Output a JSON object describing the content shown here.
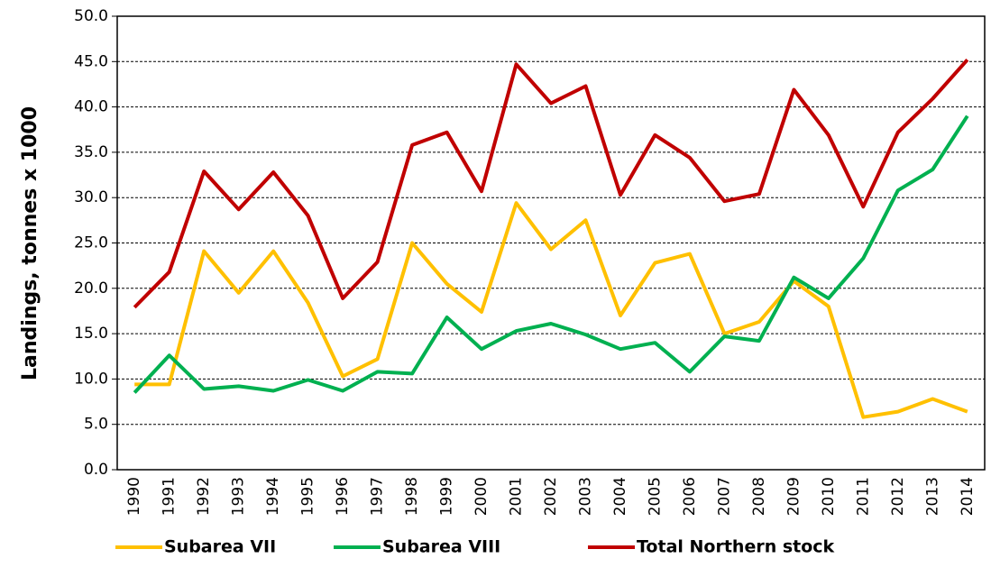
{
  "chart_data": {
    "type": "line",
    "y_label": "Landings, tonnes x 1000",
    "categories": [
      "1990",
      "1991",
      "1992",
      "1993",
      "1994",
      "1995",
      "1996",
      "1997",
      "1998",
      "1999",
      "2000",
      "2001",
      "2002",
      "2003",
      "2004",
      "2005",
      "2006",
      "2007",
      "2008",
      "2009",
      "2010",
      "2011",
      "2012",
      "2013",
      "2014"
    ],
    "series": [
      {
        "name": "Subarea VII",
        "color": "#ffc000",
        "values": [
          9.4,
          9.4,
          24.1,
          19.5,
          24.1,
          18.4,
          10.3,
          12.2,
          25.0,
          20.5,
          17.4,
          29.4,
          24.3,
          27.5,
          17.0,
          22.8,
          23.8,
          15.0,
          16.3,
          20.8,
          18.0,
          5.8,
          6.4,
          7.8,
          6.4
        ]
      },
      {
        "name": "Subarea VIII",
        "color": "#00b050",
        "values": [
          8.5,
          12.6,
          8.9,
          9.2,
          8.7,
          9.9,
          8.7,
          10.8,
          10.6,
          16.8,
          13.3,
          15.3,
          16.1,
          14.9,
          13.3,
          14.0,
          10.8,
          14.7,
          14.2,
          21.2,
          18.9,
          23.3,
          30.8,
          33.1,
          39.0
        ]
      },
      {
        "name": "Total Northern stock",
        "color": "#c00000",
        "values": [
          17.9,
          21.8,
          32.9,
          28.7,
          32.8,
          28.0,
          18.9,
          22.9,
          35.8,
          37.2,
          30.7,
          44.7,
          40.4,
          42.3,
          30.3,
          36.9,
          34.4,
          29.6,
          30.4,
          41.9,
          36.9,
          29.0,
          37.2,
          40.9,
          45.2
        ]
      }
    ],
    "ylim": [
      0,
      50
    ],
    "yticks": [
      {
        "value": 0,
        "label": "0.0"
      },
      {
        "value": 5,
        "label": "5.0"
      },
      {
        "value": 10,
        "label": "10.0"
      },
      {
        "value": 15,
        "label": "15.0"
      },
      {
        "value": 20,
        "label": "20.0"
      },
      {
        "value": 25,
        "label": "25.0"
      },
      {
        "value": 30,
        "label": "30.0"
      },
      {
        "value": 35,
        "label": "35.0"
      },
      {
        "value": 40,
        "label": "40.0"
      },
      {
        "value": 45,
        "label": "45.0"
      },
      {
        "value": 50,
        "label": "50.0"
      }
    ],
    "grid": true,
    "legend": "bottom"
  }
}
